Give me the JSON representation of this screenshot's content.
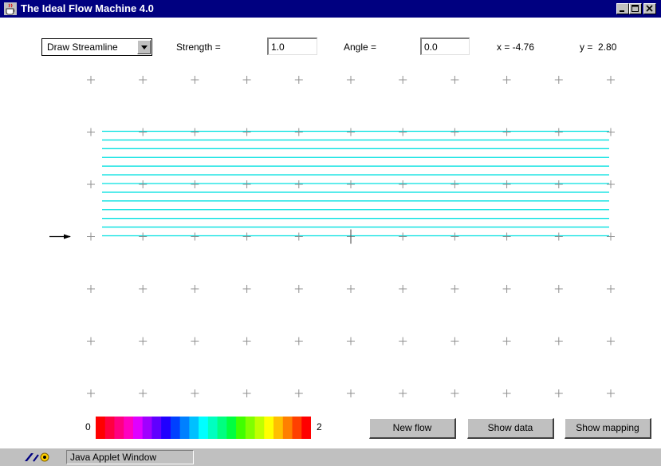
{
  "window": {
    "title": "The Ideal Flow Machine 4.0",
    "titlebar_color": "#000080",
    "buttons": [
      "minimize-icon",
      "maximize-icon",
      "close-icon"
    ]
  },
  "toolbar": {
    "mode_select": {
      "value": "Draw Streamline"
    },
    "strength_label": "Strength =",
    "strength_value": "1.0",
    "angle_label": "Angle =",
    "angle_value": "0.0",
    "x_readout": "x = -4.76",
    "y_readout": "y =  2.80"
  },
  "plot": {
    "grid_marker": "+",
    "grid_columns": 11,
    "grid_rows": 7,
    "streamline_color": "#00e0e0",
    "streamline_count": 13,
    "flow_arrow": "arrow-right-icon"
  },
  "colorbar": {
    "min_label": "0",
    "max_label": "2",
    "colors": [
      "#ff0000",
      "#ff0040",
      "#ff0080",
      "#ff00c0",
      "#e000ff",
      "#a000ff",
      "#6000ff",
      "#2000ff",
      "#0040ff",
      "#0080ff",
      "#00c0ff",
      "#00ffff",
      "#00ffc0",
      "#00ff80",
      "#00ff40",
      "#40ff00",
      "#80ff00",
      "#c0ff00",
      "#ffff00",
      "#ffc000",
      "#ff8000",
      "#ff4000",
      "#ff0000"
    ]
  },
  "buttons": {
    "new_flow": "New flow",
    "show_data": "Show data",
    "show_mapping": "Show mapping"
  },
  "statusbar": {
    "text": "Java Applet Window",
    "icon": "java-applet-icon"
  }
}
